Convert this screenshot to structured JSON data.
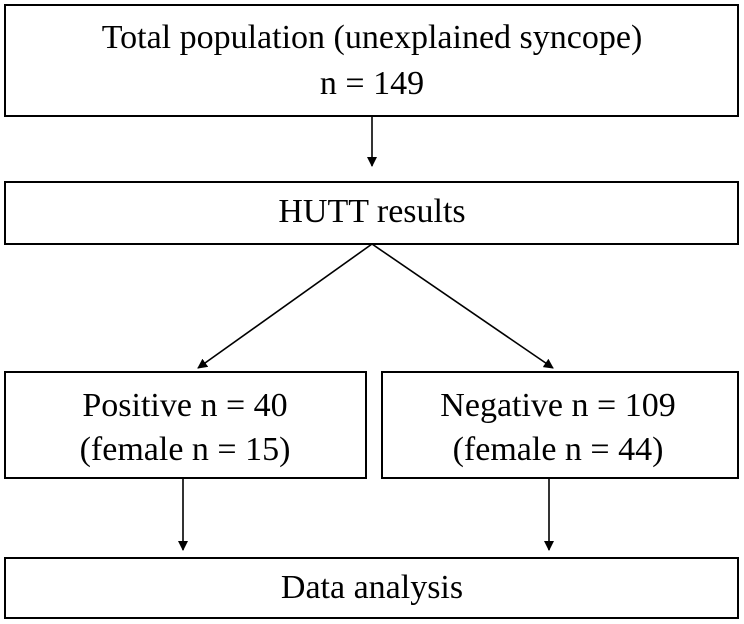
{
  "nodes": [
    {
      "lines": [
        "Total population (unexplained syncope)",
        "n = 149"
      ]
    },
    {
      "lines": [
        "HUTT results"
      ]
    },
    {
      "lines": [
        "Positive n = 40",
        "(female n = 15)"
      ]
    },
    {
      "lines": [
        "Negative n = 109",
        "(female n = 44)"
      ]
    },
    {
      "lines": [
        "Data analysis"
      ]
    }
  ]
}
